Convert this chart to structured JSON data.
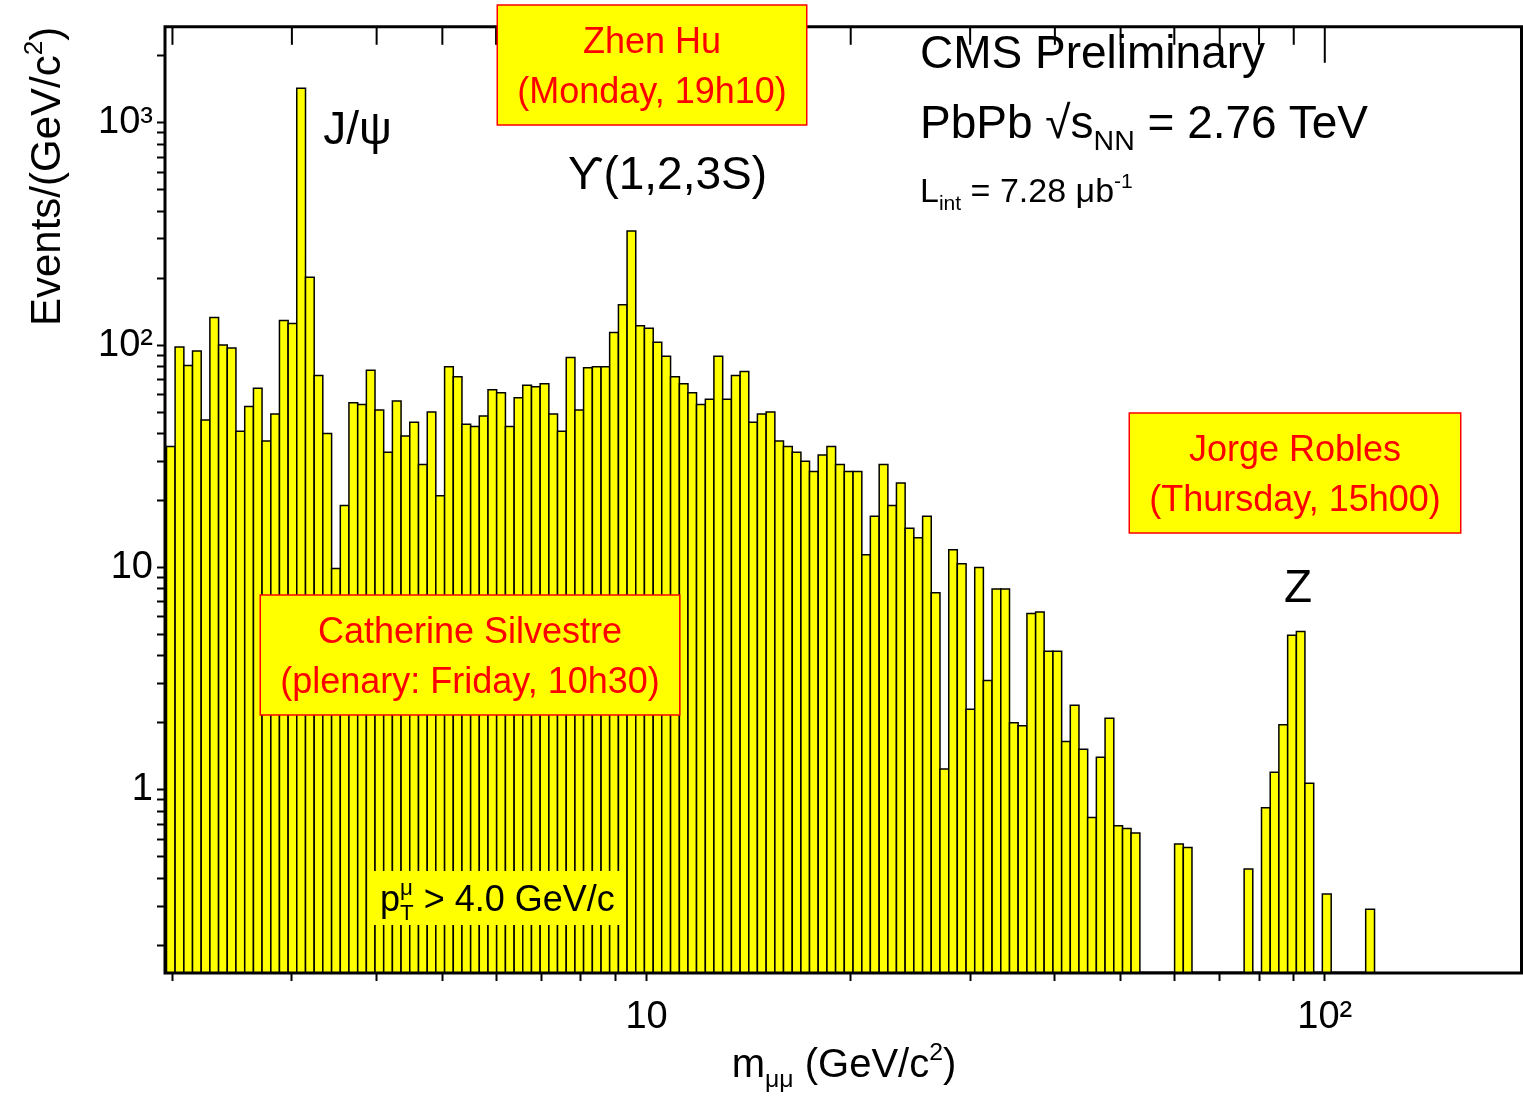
{
  "chart_data": {
    "type": "histogram",
    "xlabel": "m$_{μμ}$ (GeV/c$^{2}$)",
    "ylabel": "Events/(GeV/c$^{2}$)",
    "log": "xy",
    "color": "#ffff00",
    "xlim": [
      1.95,
      196
    ],
    "ylim": [
      0.15,
      2700
    ],
    "xticks": [
      {
        "value": 2,
        "label": null
      },
      {
        "value": 3,
        "label": null
      },
      {
        "value": 4,
        "label": null
      },
      {
        "value": 5,
        "label": null
      },
      {
        "value": 6,
        "label": null
      },
      {
        "value": 7,
        "label": null
      },
      {
        "value": 8,
        "label": null
      },
      {
        "value": 9,
        "label": null
      },
      10,
      {
        "value": 20,
        "label": null
      },
      {
        "value": 30,
        "label": null
      },
      {
        "value": 40,
        "label": null
      },
      {
        "value": 50,
        "label": null
      },
      {
        "value": 60,
        "label": null
      },
      {
        "value": 70,
        "label": null
      },
      {
        "value": 80,
        "label": null
      },
      {
        "value": 90,
        "label": null
      },
      {
        "value": 100,
        "label": "10²"
      }
    ],
    "yticks": [
      {
        "value": 0.2,
        "label": null
      },
      {
        "value": 0.3,
        "label": null
      },
      {
        "value": 0.4,
        "label": null
      },
      {
        "value": 0.5,
        "label": null
      },
      {
        "value": 0.6,
        "label": null
      },
      {
        "value": 0.7,
        "label": null
      },
      {
        "value": 0.8,
        "label": null
      },
      {
        "value": 0.9,
        "label": null
      },
      1,
      {
        "value": 2,
        "label": null
      },
      {
        "value": 3,
        "label": null
      },
      {
        "value": 4,
        "label": null
      },
      {
        "value": 5,
        "label": null
      },
      {
        "value": 6,
        "label": null
      },
      {
        "value": 7,
        "label": null
      },
      {
        "value": 8,
        "label": null
      },
      {
        "value": 9,
        "label": null
      },
      10,
      {
        "value": 20,
        "label": null
      },
      {
        "value": 30,
        "label": null
      },
      {
        "value": 40,
        "label": null
      },
      {
        "value": 50,
        "label": null
      },
      {
        "value": 60,
        "label": null
      },
      {
        "value": 70,
        "label": null
      },
      {
        "value": 80,
        "label": null
      },
      {
        "value": 90,
        "label": null
      },
      {
        "value": 100,
        "label": "10²"
      },
      {
        "value": 200,
        "label": null
      },
      {
        "value": 300,
        "label": null
      },
      {
        "value": 400,
        "label": null
      },
      {
        "value": 500,
        "label": null
      },
      {
        "value": 600,
        "label": null
      },
      {
        "value": 700,
        "label": null
      },
      {
        "value": 800,
        "label": null
      },
      {
        "value": 900,
        "label": null
      },
      {
        "value": 1000,
        "label": "10³"
      },
      {
        "value": 2000,
        "label": null
      }
    ],
    "bins": [
      1.96,
      2.018,
      2.079,
      2.141,
      2.205,
      2.271,
      2.339,
      2.409,
      2.481,
      2.556,
      2.633,
      2.711,
      2.793,
      2.876,
      2.962,
      3.05,
      3.142,
      3.236,
      3.332,
      3.433,
      3.536,
      3.641,
      3.751,
      3.863,
      3.978,
      4.097,
      4.22,
      4.346,
      4.476,
      4.611,
      4.75,
      4.89,
      5.038,
      5.189,
      5.344,
      5.504,
      5.668,
      5.838,
      6.012,
      6.194,
      6.38,
      6.569,
      6.767,
      6.969,
      7.178,
      7.392,
      7.614,
      7.842,
      8.076,
      8.32,
      8.57,
      8.823,
      9.09,
      9.361,
      9.641,
      9.929,
      10.23,
      10.53,
      10.85,
      11.18,
      11.51,
      11.85,
      12.21,
      12.57,
      12.95,
      13.34,
      13.74,
      14.15,
      14.57,
      15.01,
      15.46,
      15.92,
      16.4,
      16.89,
      17.39,
      17.91,
      18.45,
      19.0,
      19.57,
      20.16,
      20.77,
      21.38,
      22.03,
      22.69,
      23.36,
      24.06,
      24.78,
      25.53,
      26.29,
      27.08,
      27.9,
      28.72,
      29.59,
      30.47,
      31.38,
      32.32,
      33.29,
      34.29,
      35.31,
      36.38,
      37.47,
      38.57,
      39.74,
      40.93,
      42.15,
      43.41,
      44.71,
      46.05,
      47.43,
      48.86,
      50.33,
      51.81,
      53.38,
      54.97,
      56.62,
      58.31,
      60.06,
      61.86,
      63.71,
      65.63,
      67.6,
      69.6,
      71.7,
      73.84,
      76.05,
      78.32,
      80.67,
      83.09,
      85.57,
      88.16,
      90.81,
      93.48,
      96.31,
      99.18,
      102.2,
      105.2,
      108.4,
      111.6,
      114.9,
      118.4
    ],
    "values": [
      35,
      98,
      81,
      94,
      46,
      133,
      100,
      97,
      41,
      53,
      64,
      37,
      49,
      129,
      125,
      1430,
      202,
      73,
      40,
      9.9,
      19,
      55,
      54,
      77,
      51,
      33,
      56,
      39,
      45,
      29,
      50,
      21,
      80,
      72,
      44,
      43,
      48,
      63,
      61,
      43,
      58,
      66,
      65,
      67,
      49,
      41,
      88,
      51,
      79,
      80,
      80,
      114,
      152,
      326,
      122,
      119,
      103,
      89,
      72,
      67,
      61,
      54,
      57,
      89,
      57,
      73,
      76,
      45,
      49,
      50,
      37,
      35,
      33,
      30,
      27,
      32,
      35,
      29,
      27,
      27,
      11.4,
      17,
      29,
      19,
      24,
      15,
      13.6,
      17,
      7.7,
      1.24,
      12,
      10.4,
      2.3,
      10,
      3.1,
      8.0,
      8.0,
      2.0,
      1.94,
      6.2,
      6.3,
      4.2,
      4.2,
      1.65,
      2.4,
      1.52,
      0.75,
      1.4,
      2.1,
      0.69,
      0.67,
      0.64,
      null,
      null,
      null,
      null,
      0.57,
      0.55,
      null,
      null,
      null,
      null,
      null,
      null,
      0.44,
      null,
      0.83,
      1.2,
      1.96,
      4.95,
      5.15,
      1.07,
      null,
      0.34,
      null,
      null,
      null,
      null,
      0.29
    ],
    "annotations": [
      "CMS Preliminary",
      "PbPb √s$_{NN}$ = 2.76 TeV",
      "L$_{int}$ = 7.28 μb$^{-1}$",
      "p$_{T}$$^{μ}$ > 4.0 GeV/c",
      {
        "text": "J/ψ",
        "x": 3.1,
        "y": 1430
      },
      {
        "text": "ϒ(1,2,3S)",
        "x": 9.5,
        "y": 326
      },
      {
        "text": "Z",
        "x": 91,
        "y": 5.15
      },
      "Zhen Hu\n(Monday, 19h10)",
      "Jorge Robles\n(Thursday, 15h00)",
      "Catherine Silvestre\n(plenary: Friday, 10h30)"
    ]
  }
}
